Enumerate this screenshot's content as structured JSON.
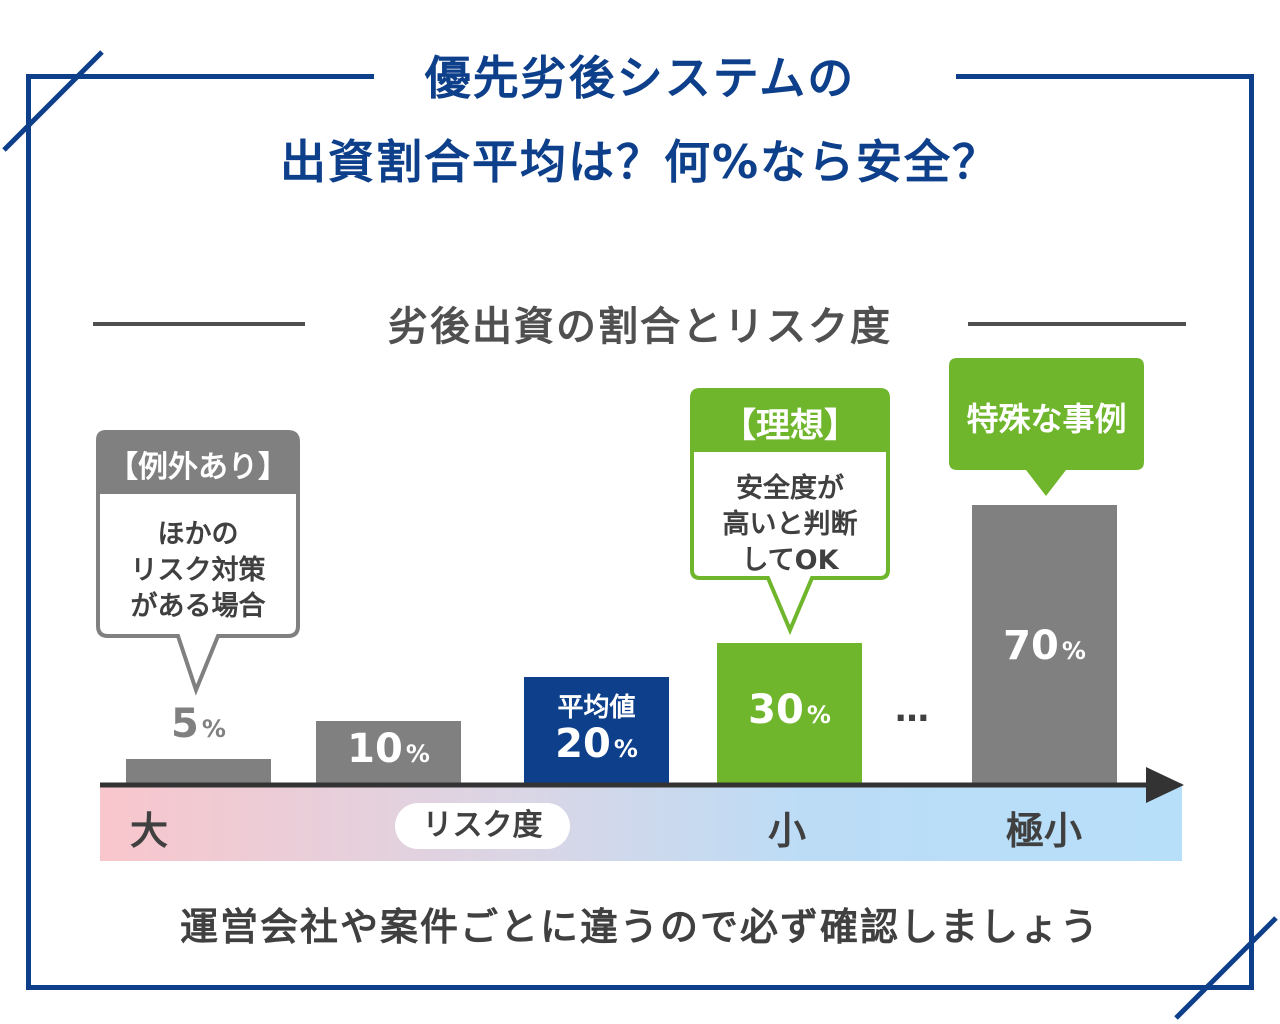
{
  "title": {
    "line1": "優先劣後システムの",
    "line2": "出資割合平均は？何%なら安全？"
  },
  "subtitle": "劣後出資の割合とリスク度",
  "footer": "運営会社や案件ごとに違うので必ず確認しましょう",
  "axis": {
    "left": "大",
    "center": "リスク度",
    "mid": "小",
    "right": "極小"
  },
  "ellipsis": "…",
  "colors": {
    "frame": "#0d3f8a",
    "gray": "#808080",
    "navy": "#0d3f8a",
    "green": "#6fb62c"
  },
  "chart_data": {
    "type": "bar",
    "title": "劣後出資の割合とリスク度",
    "xlabel": "リスク度",
    "categories": [
      "5%",
      "10%",
      "20%",
      "30%",
      "70%"
    ],
    "values": [
      5,
      10,
      20,
      30,
      70
    ],
    "value_unit": "%",
    "bar_colors": [
      "#808080",
      "#808080",
      "#0d3f8a",
      "#6fb62c",
      "#808080"
    ],
    "risk_scale": [
      "大",
      "小",
      "極小"
    ],
    "annotations": [
      {
        "bar": "20%",
        "label": "平均値"
      }
    ]
  },
  "callouts": {
    "exception": {
      "head": "【例外あり】",
      "lines": [
        "ほかの",
        "リスク対策",
        "がある場合"
      ]
    },
    "ideal": {
      "head": "【理想】",
      "lines": [
        "安全度が",
        "高いと判断",
        "してOK"
      ]
    },
    "special": {
      "head": "特殊な事例"
    }
  }
}
